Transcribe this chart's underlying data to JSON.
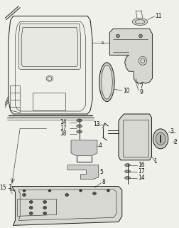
{
  "bg_color": "#f0f0eb",
  "line_color": "#1a1a1a",
  "fig_width": 2.52,
  "fig_height": 3.2,
  "dpi": 100
}
